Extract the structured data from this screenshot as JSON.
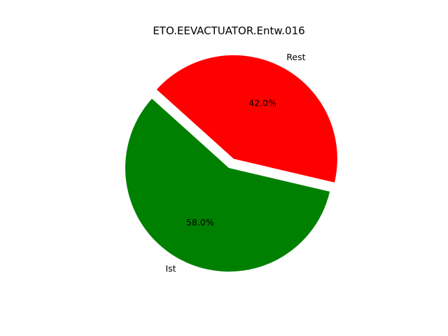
{
  "chart_data": {
    "type": "pie",
    "title": "ETO.EEVACTUATOR.Entw.016",
    "slices": [
      {
        "label": "Ist",
        "value": 58.0,
        "pct_label": "58.0%",
        "color": "#008000",
        "exploded": false
      },
      {
        "label": "Rest",
        "value": 42.0,
        "pct_label": "42.0%",
        "color": "#ff0000",
        "exploded": true
      }
    ],
    "legend": "none"
  }
}
